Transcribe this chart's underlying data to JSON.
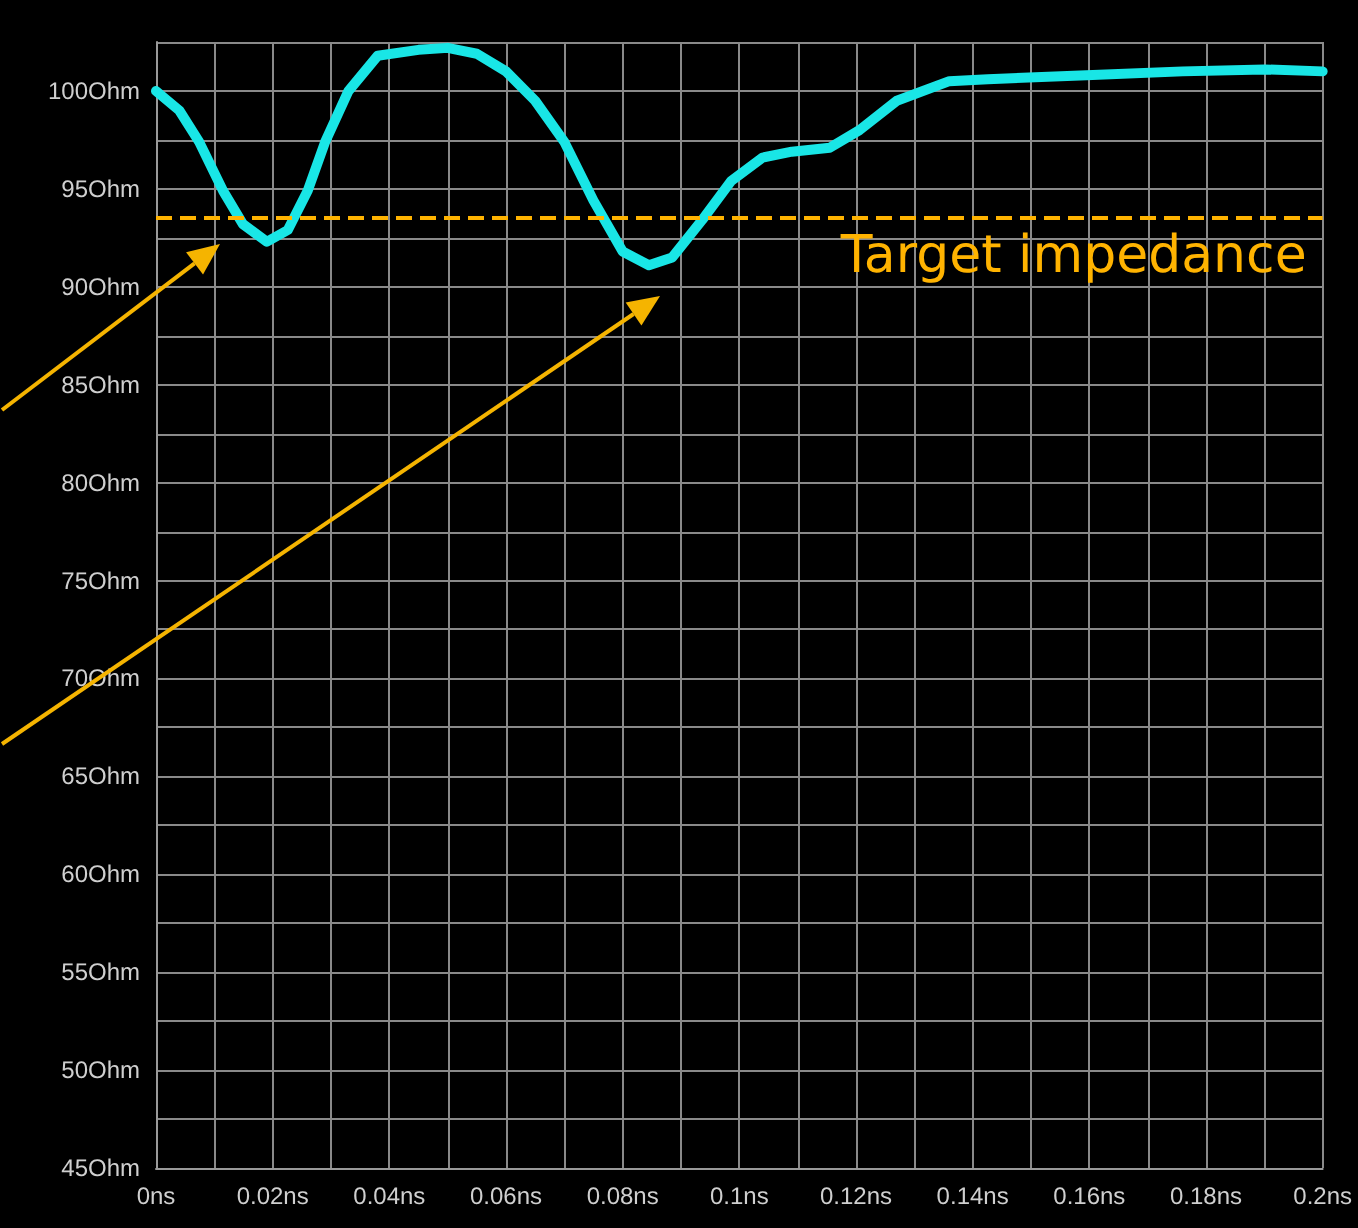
{
  "chart_data": {
    "type": "line",
    "x": [
      0,
      0.004,
      0.0074,
      0.0115,
      0.0149,
      0.019,
      0.0226,
      0.026,
      0.029,
      0.033,
      0.038,
      0.045,
      0.05,
      0.055,
      0.06,
      0.065,
      0.07,
      0.075,
      0.08,
      0.0845,
      0.0885,
      0.0936,
      0.0986,
      0.104,
      0.109,
      0.1155,
      0.1206,
      0.127,
      0.136,
      0.1426,
      0.1595,
      0.176,
      0.19,
      0.2
    ],
    "series": [
      {
        "color": "#19e6e6",
        "values": [
          100,
          99,
          97.4,
          94.9,
          93.2,
          92.3,
          92.9,
          94.9,
          97.4,
          100,
          101.8,
          102.1,
          102.2,
          101.9,
          101,
          99.5,
          97.4,
          94.4,
          91.8,
          91.1,
          91.5,
          93.4,
          95.4,
          96.6,
          96.9,
          97.1,
          98,
          99.5,
          100.5,
          100.6,
          100.8,
          101,
          101.1,
          101
        ]
      }
    ],
    "xlim": [
      0,
      0.2
    ],
    "xticks": [
      {
        "value": 0,
        "label": "0ns"
      },
      {
        "value": 0.01,
        "label": null
      },
      {
        "value": 0.02,
        "label": "0.02ns"
      },
      {
        "value": 0.03,
        "label": null
      },
      {
        "value": 0.04,
        "label": "0.04ns"
      },
      {
        "value": 0.05,
        "label": null
      },
      {
        "value": 0.06,
        "label": "0.06ns"
      },
      {
        "value": 0.07,
        "label": null
      },
      {
        "value": 0.08,
        "label": "0.08ns"
      },
      {
        "value": 0.09,
        "label": null
      },
      {
        "value": 0.1,
        "label": "0.1ns"
      },
      {
        "value": 0.11,
        "label": null
      },
      {
        "value": 0.12,
        "label": "0.12ns"
      },
      {
        "value": 0.13,
        "label": null
      },
      {
        "value": 0.14,
        "label": "0.14ns"
      },
      {
        "value": 0.15,
        "label": null
      },
      {
        "value": 0.16,
        "label": "0.16ns"
      },
      {
        "value": 0.17,
        "label": null
      },
      {
        "value": 0.18,
        "label": "0.18ns"
      },
      {
        "value": 0.19,
        "label": null
      },
      {
        "value": 0.2,
        "label": "0.2ns"
      }
    ],
    "ylim": [
      45,
      102.5
    ],
    "yticks": [
      {
        "value": 45,
        "label": "45Ohm"
      },
      {
        "value": 47.5,
        "label": null
      },
      {
        "value": 50,
        "label": "50Ohm"
      },
      {
        "value": 52.5,
        "label": null
      },
      {
        "value": 55,
        "label": "55Ohm"
      },
      {
        "value": 57.5,
        "label": null
      },
      {
        "value": 60,
        "label": "60Ohm"
      },
      {
        "value": 62.5,
        "label": null
      },
      {
        "value": 65,
        "label": "65Ohm"
      },
      {
        "value": 67.5,
        "label": null
      },
      {
        "value": 70,
        "label": "70Ohm"
      },
      {
        "value": 72.5,
        "label": null
      },
      {
        "value": 75,
        "label": "75Ohm"
      },
      {
        "value": 77.5,
        "label": null
      },
      {
        "value": 80,
        "label": "80Ohm"
      },
      {
        "value": 82.5,
        "label": null
      },
      {
        "value": 85,
        "label": "85Ohm"
      },
      {
        "value": 87.5,
        "label": null
      },
      {
        "value": 90,
        "label": "90Ohm"
      },
      {
        "value": 92.5,
        "label": null
      },
      {
        "value": 95,
        "label": "95Ohm"
      },
      {
        "value": 97.5,
        "label": null
      },
      {
        "value": 100,
        "label": "100Ohm"
      },
      {
        "value": 102.5,
        "label": null
      }
    ],
    "ref_lines": [
      {
        "axis": "y",
        "value": 93.5,
        "label": "Target impedance",
        "color": "#ffb300",
        "line_style": "dashed"
      }
    ],
    "grid": true,
    "marker": "none",
    "line_style": "solid"
  }
}
